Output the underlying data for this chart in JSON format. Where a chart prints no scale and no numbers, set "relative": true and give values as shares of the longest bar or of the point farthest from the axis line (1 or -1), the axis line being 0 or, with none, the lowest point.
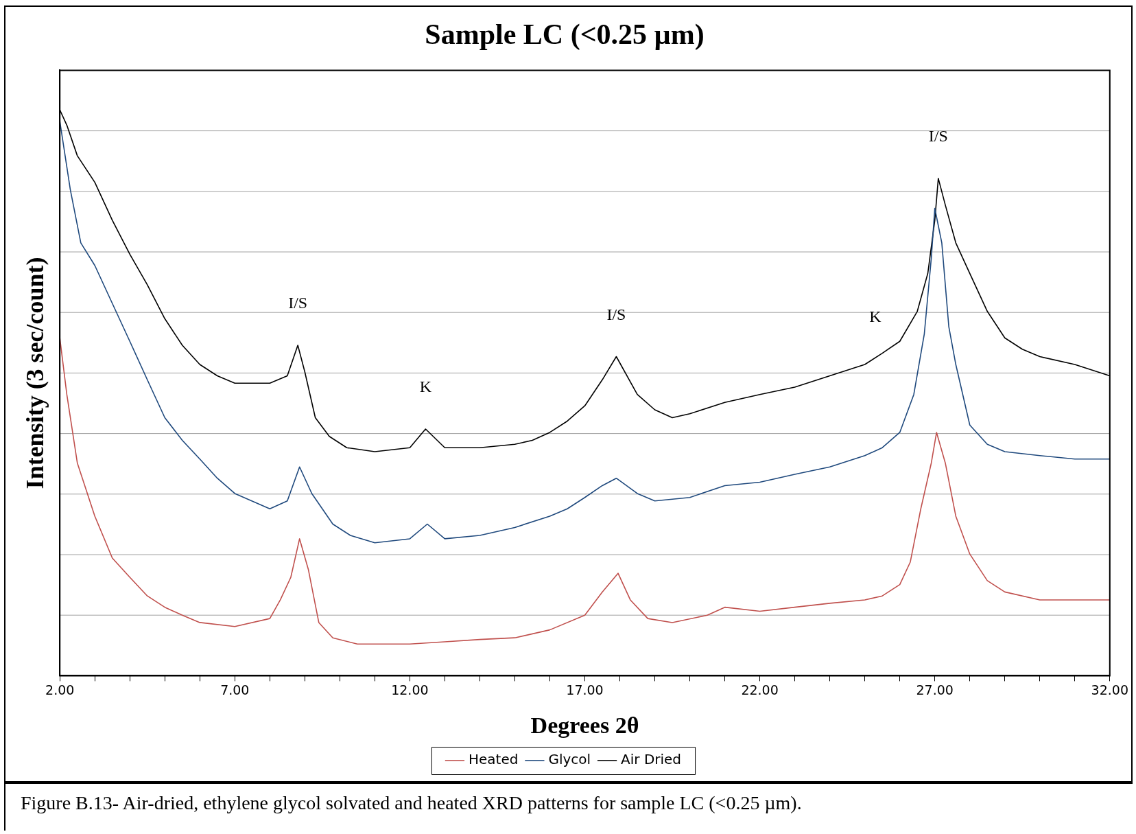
{
  "chart_data": {
    "type": "line",
    "title": "Sample LC (<0.25 µm)",
    "xlabel": "Degrees 2θ",
    "ylabel": "Intensity (3 sec/count)",
    "relative": true,
    "xlim": [
      2,
      32
    ],
    "xticks": [
      {
        "value": 2,
        "label": "2.00"
      },
      {
        "value": 3,
        "label": null
      },
      {
        "value": 4,
        "label": null
      },
      {
        "value": 5,
        "label": null
      },
      {
        "value": 6,
        "label": null
      },
      {
        "value": 7,
        "label": "7.00"
      },
      {
        "value": 8,
        "label": null
      },
      {
        "value": 9,
        "label": null
      },
      {
        "value": 10,
        "label": null
      },
      {
        "value": 11,
        "label": null
      },
      {
        "value": 12,
        "label": "12.00"
      },
      {
        "value": 13,
        "label": null
      },
      {
        "value": 14,
        "label": null
      },
      {
        "value": 15,
        "label": null
      },
      {
        "value": 16,
        "label": null
      },
      {
        "value": 17,
        "label": "17.00"
      },
      {
        "value": 18,
        "label": null
      },
      {
        "value": 19,
        "label": null
      },
      {
        "value": 20,
        "label": null
      },
      {
        "value": 21,
        "label": null
      },
      {
        "value": 22,
        "label": "22.00"
      },
      {
        "value": 23,
        "label": null
      },
      {
        "value": 24,
        "label": null
      },
      {
        "value": 25,
        "label": null
      },
      {
        "value": 26,
        "label": null
      },
      {
        "value": 27,
        "label": "27.00"
      },
      {
        "value": 28,
        "label": null
      },
      {
        "value": 29,
        "label": null
      },
      {
        "value": 30,
        "label": null
      },
      {
        "value": 31,
        "label": null
      },
      {
        "value": 32,
        "label": "32.00"
      }
    ],
    "grid": "y",
    "legend": "bottom",
    "marker": "none",
    "line_style": "solid",
    "series": [
      {
        "name": "Heated",
        "color": "#c0504d",
        "x": [
          2,
          2.2,
          2.5,
          3,
          3.5,
          4,
          4.5,
          5,
          5.5,
          6,
          7,
          8,
          8.3,
          8.6,
          8.85,
          9.1,
          9.4,
          9.8,
          10.5,
          12,
          13,
          14,
          15,
          16,
          17,
          17.5,
          17.95,
          18.3,
          18.8,
          19.5,
          20.5,
          21,
          22,
          23,
          24,
          25,
          25.5,
          26,
          26.3,
          26.6,
          26.9,
          27.05,
          27.3,
          27.6,
          28,
          28.5,
          29,
          30,
          32
        ],
        "values": [
          0.597,
          0.497,
          0.376,
          0.282,
          0.208,
          0.174,
          0.141,
          0.121,
          0.107,
          0.094,
          0.087,
          0.101,
          0.134,
          0.174,
          0.242,
          0.188,
          0.094,
          0.067,
          0.056,
          0.056,
          0.06,
          0.064,
          0.067,
          0.081,
          0.107,
          0.148,
          0.181,
          0.134,
          0.101,
          0.094,
          0.107,
          0.121,
          0.114,
          0.121,
          0.128,
          0.134,
          0.141,
          0.161,
          0.201,
          0.295,
          0.376,
          0.43,
          0.376,
          0.282,
          0.215,
          0.168,
          0.148,
          0.134,
          0.134
        ]
      },
      {
        "name": "Glycol",
        "color": "#1f497d",
        "x": [
          2,
          2.3,
          2.6,
          3,
          3.5,
          4,
          4.5,
          5,
          5.5,
          6,
          6.5,
          7,
          8,
          8.5,
          8.85,
          9.2,
          9.8,
          10.3,
          11,
          12,
          12.5,
          13,
          14,
          15,
          16,
          16.5,
          17,
          17.5,
          17.9,
          18.5,
          19,
          20,
          21,
          22,
          23,
          24,
          25,
          25.5,
          26,
          26.4,
          26.7,
          26.9,
          27,
          27.2,
          27.4,
          27.6,
          28,
          28.5,
          29,
          30,
          31,
          32
        ],
        "values": [
          0.98,
          0.859,
          0.765,
          0.725,
          0.658,
          0.591,
          0.523,
          0.456,
          0.416,
          0.383,
          0.349,
          0.322,
          0.295,
          0.309,
          0.369,
          0.322,
          0.268,
          0.248,
          0.235,
          0.242,
          0.268,
          0.242,
          0.248,
          0.262,
          0.282,
          0.295,
          0.315,
          0.336,
          0.349,
          0.322,
          0.309,
          0.315,
          0.336,
          0.342,
          0.356,
          0.369,
          0.389,
          0.403,
          0.43,
          0.497,
          0.604,
          0.738,
          0.826,
          0.765,
          0.617,
          0.55,
          0.443,
          0.409,
          0.396,
          0.389,
          0.383,
          0.383
        ]
      },
      {
        "name": "Air Dried",
        "color": "#000000",
        "x": [
          2,
          2.2,
          2.5,
          3,
          3.5,
          4,
          4.5,
          5,
          5.5,
          6,
          6.5,
          7,
          8,
          8.5,
          8.8,
          9,
          9.3,
          9.7,
          10.2,
          11,
          12,
          12.45,
          13,
          14,
          15,
          15.5,
          16,
          16.5,
          17,
          17.5,
          17.9,
          18.5,
          19,
          19.5,
          20,
          21,
          22,
          23,
          24,
          25,
          25.5,
          26,
          26.5,
          26.8,
          27,
          27.1,
          27.3,
          27.6,
          28,
          28.5,
          29,
          29.5,
          30,
          31,
          32
        ],
        "values": [
          1,
          0.973,
          0.919,
          0.872,
          0.805,
          0.745,
          0.691,
          0.631,
          0.584,
          0.55,
          0.53,
          0.517,
          0.517,
          0.53,
          0.584,
          0.537,
          0.456,
          0.423,
          0.403,
          0.396,
          0.403,
          0.436,
          0.403,
          0.403,
          0.409,
          0.416,
          0.43,
          0.45,
          0.477,
          0.523,
          0.564,
          0.497,
          0.47,
          0.456,
          0.463,
          0.483,
          0.497,
          0.51,
          0.53,
          0.55,
          0.57,
          0.591,
          0.644,
          0.711,
          0.805,
          0.879,
          0.832,
          0.765,
          0.711,
          0.644,
          0.597,
          0.577,
          0.564,
          0.55,
          0.53
        ]
      }
    ],
    "annotations": [
      {
        "text": "I/S",
        "x": 8.8,
        "y": 0.584
      },
      {
        "text": "K",
        "x": 12.45,
        "y": 0.436
      },
      {
        "text": "I/S",
        "x": 17.9,
        "y": 0.564
      },
      {
        "text": "K",
        "x": 25.3,
        "y": 0.56
      },
      {
        "text": "I/S",
        "x": 27.1,
        "y": 0.879
      },
      "Figure B.13- Air-dried, ethylene glycol solvated and heated XRD patterns for sample LC (<0.25 µm)."
    ]
  }
}
